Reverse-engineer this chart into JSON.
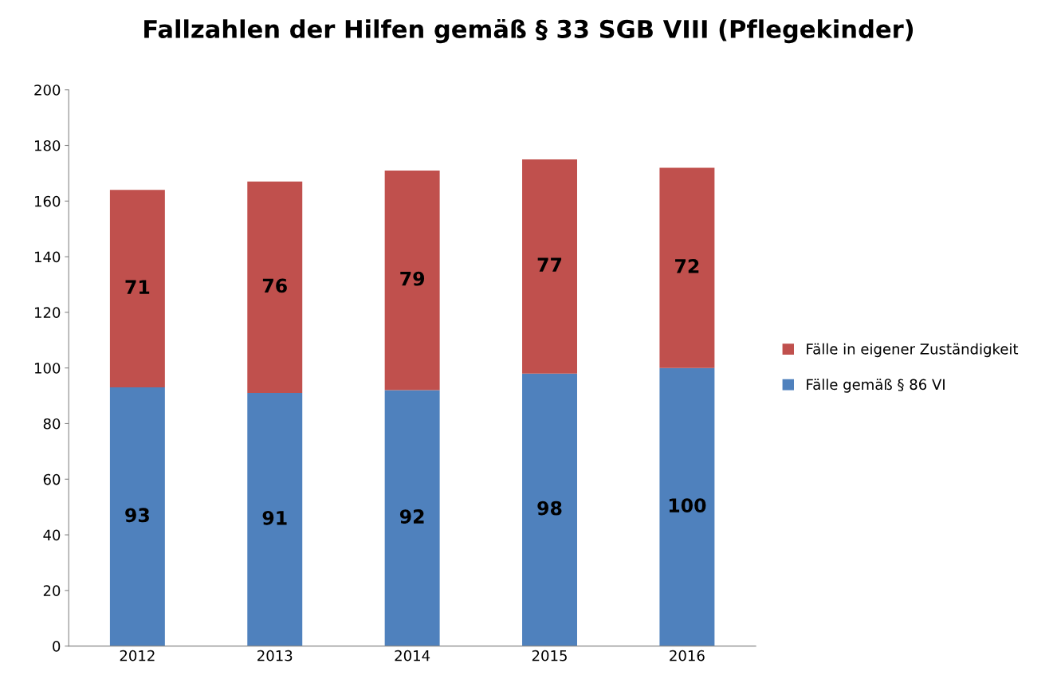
{
  "chart_data": {
    "type": "bar",
    "title": "Fallzahlen der Hilfen gemäß § 33 SGB VIII (Pflegekinder)",
    "categories": [
      "2012",
      "2013",
      "2014",
      "2015",
      "2016"
    ],
    "series": [
      {
        "name": "Fälle gemäß § 86 VI",
        "color": "#4f81bd",
        "values": [
          93,
          91,
          92,
          98,
          100
        ]
      },
      {
        "name": "Fälle in eigener Zuständigkeit",
        "color": "#c0504d",
        "values": [
          71,
          76,
          79,
          77,
          72
        ]
      }
    ],
    "stacked": true,
    "data_labels": true,
    "ylim": [
      0,
      200
    ],
    "yticks": [
      0,
      20,
      40,
      60,
      80,
      100,
      120,
      140,
      160,
      180,
      200
    ],
    "grid": false,
    "legend": "right"
  }
}
